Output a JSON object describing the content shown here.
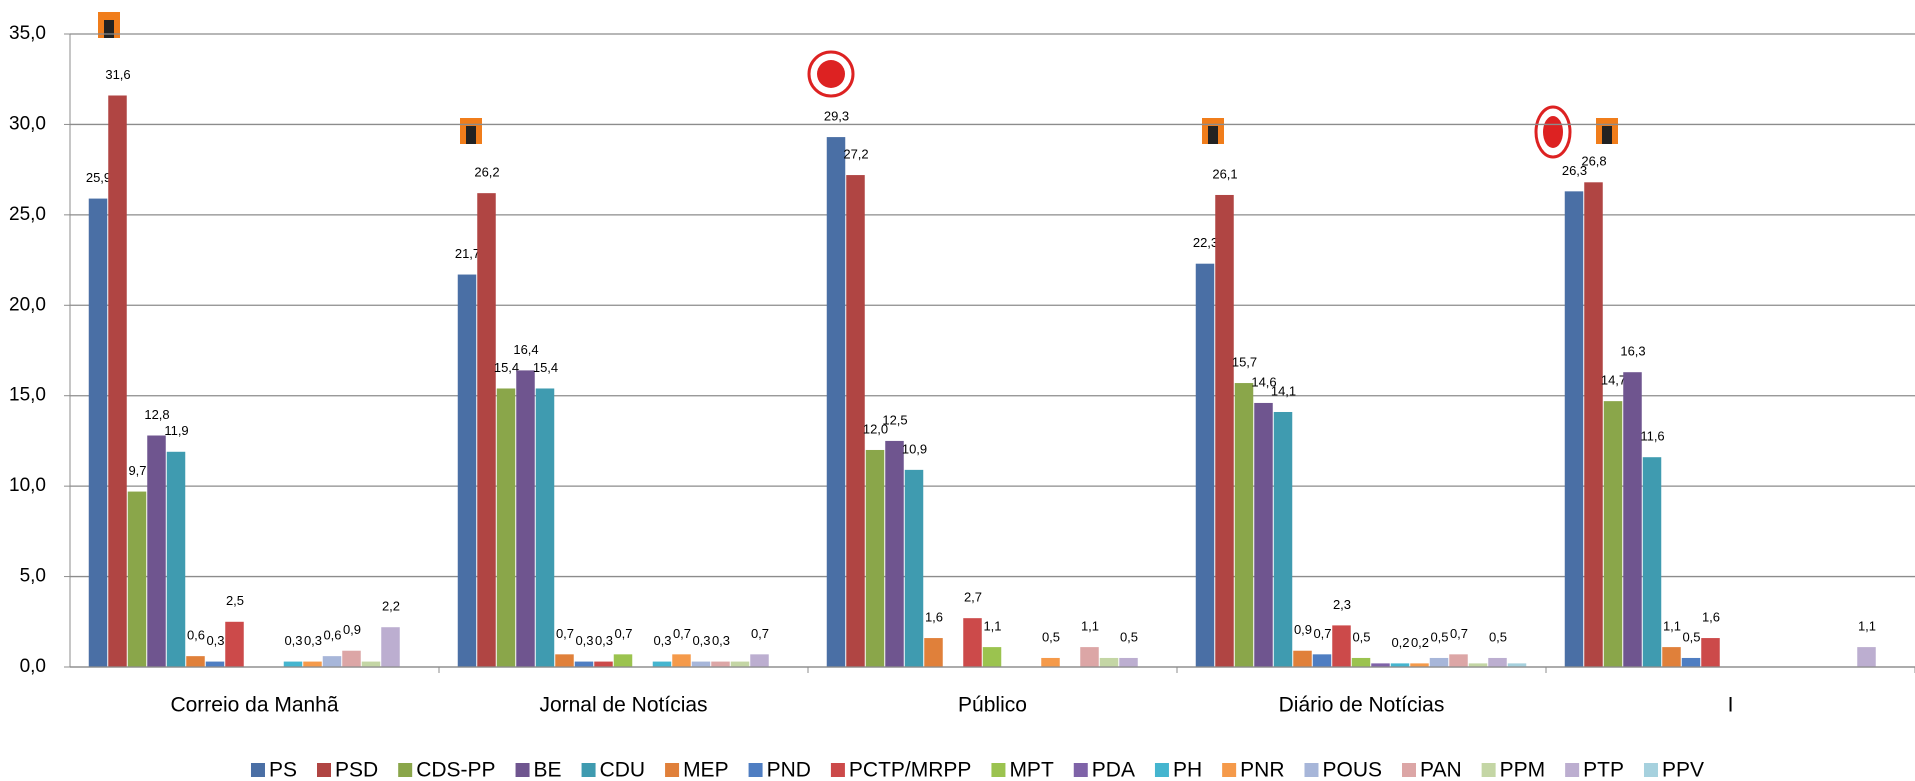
{
  "chart_data": {
    "type": "bar",
    "categories": [
      "Correio da Manhã",
      "Jornal de Notícias",
      "Público",
      "Diário de Notícias",
      "I"
    ],
    "ylim": [
      0,
      35
    ],
    "yticks": [
      {
        "value": 0,
        "label": "0,0"
      },
      {
        "value": 5,
        "label": "5,0"
      },
      {
        "value": 10,
        "label": "10,0"
      },
      {
        "value": 15,
        "label": "15,0"
      },
      {
        "value": 20,
        "label": "20,0"
      },
      {
        "value": 25,
        "label": "25,0"
      },
      {
        "value": 30,
        "label": "30,0"
      },
      {
        "value": 35,
        "label": "35,0"
      }
    ],
    "grid": true,
    "legend": "bottom",
    "series": [
      {
        "name": "PS",
        "color": "#4a6fa5",
        "values": [
          25.9,
          21.7,
          29.3,
          22.3,
          26.3
        ],
        "value_labels": [
          "25,9",
          "21,7",
          "29,3",
          "22,3",
          "26,3"
        ]
      },
      {
        "name": "PSD",
        "color": "#b04543",
        "values": [
          31.6,
          26.2,
          27.2,
          26.1,
          26.8
        ],
        "value_labels": [
          "31,6",
          "26,2",
          "27,2",
          "26,1",
          "26,8"
        ]
      },
      {
        "name": "CDS-PP",
        "color": "#8aa64a",
        "values": [
          9.7,
          15.4,
          12.0,
          15.7,
          14.7
        ],
        "value_labels": [
          "9,7",
          "15,4",
          "12,0",
          "15,7",
          "14,7"
        ]
      },
      {
        "name": "BE",
        "color": "#6f558f",
        "values": [
          12.8,
          16.4,
          12.5,
          14.6,
          16.3
        ],
        "value_labels": [
          "12,8",
          "16,4",
          "12,5",
          "14,6",
          "16,3"
        ]
      },
      {
        "name": "CDU",
        "color": "#3f9bb0",
        "values": [
          11.9,
          15.4,
          10.9,
          14.1,
          11.6
        ],
        "value_labels": [
          "11,9",
          "15,4",
          "10,9",
          "14,1",
          "11,6"
        ]
      },
      {
        "name": "MEP",
        "color": "#e0803a",
        "values": [
          0.6,
          0.7,
          1.6,
          0.9,
          1.1
        ],
        "value_labels": [
          "0,6",
          "0,7",
          "1,6",
          "0,9",
          "1,1"
        ]
      },
      {
        "name": "PND",
        "color": "#4f7ec2",
        "values": [
          0.3,
          0.3,
          null,
          0.7,
          0.5
        ],
        "value_labels": [
          "0,3",
          "0,3",
          null,
          "0,7",
          "0,5"
        ]
      },
      {
        "name": "PCTP/MRPP",
        "color": "#cc4a4a",
        "values": [
          2.5,
          0.3,
          2.7,
          2.3,
          1.6
        ],
        "value_labels": [
          "2,5",
          "0,3",
          "2,7",
          "2,3",
          "1,6"
        ]
      },
      {
        "name": "MPT",
        "color": "#9bc34f",
        "values": [
          null,
          0.7,
          1.1,
          0.5,
          null
        ],
        "value_labels": [
          null,
          "0,7",
          "1,1",
          "0,5",
          null
        ]
      },
      {
        "name": "PDA",
        "color": "#7f63a8",
        "values": [
          null,
          null,
          null,
          0.2,
          null
        ],
        "value_labels": [
          null,
          null,
          null,
          null,
          null
        ]
      },
      {
        "name": "PH",
        "color": "#45b5cf",
        "values": [
          0.3,
          0.3,
          null,
          0.2,
          null
        ],
        "value_labels": [
          "0,3",
          "0,3",
          null,
          "0,2",
          null
        ]
      },
      {
        "name": "PNR",
        "color": "#f59a4a",
        "values": [
          0.3,
          0.7,
          0.5,
          0.2,
          null
        ],
        "value_labels": [
          "0,3",
          "0,7",
          "0,5",
          "0,2",
          null
        ]
      },
      {
        "name": "POUS",
        "color": "#a7b6d9",
        "values": [
          0.6,
          0.3,
          null,
          0.5,
          null
        ],
        "value_labels": [
          "0,6",
          "0,3",
          null,
          "0,5",
          null
        ]
      },
      {
        "name": "PAN",
        "color": "#dca6a6",
        "values": [
          0.9,
          0.3,
          1.1,
          0.7,
          null
        ],
        "value_labels": [
          "0,9",
          "0,3",
          "1,1",
          "0,7",
          null
        ]
      },
      {
        "name": "PPM",
        "color": "#c4d6a5",
        "values": [
          0.3,
          0.3,
          0.5,
          0.2,
          null
        ],
        "value_labels": [
          null,
          null,
          null,
          null,
          null
        ]
      },
      {
        "name": "PTP",
        "color": "#bcaed0",
        "values": [
          2.2,
          0.7,
          0.5,
          0.5,
          1.1
        ],
        "value_labels": [
          "2,2",
          "0,7",
          "0,5",
          "0,5",
          "1,1"
        ]
      },
      {
        "name": "PPV",
        "color": "#a6d1de",
        "values": [
          null,
          null,
          null,
          0.2,
          null
        ],
        "value_labels": [
          null,
          null,
          null,
          null,
          null
        ]
      }
    ]
  }
}
